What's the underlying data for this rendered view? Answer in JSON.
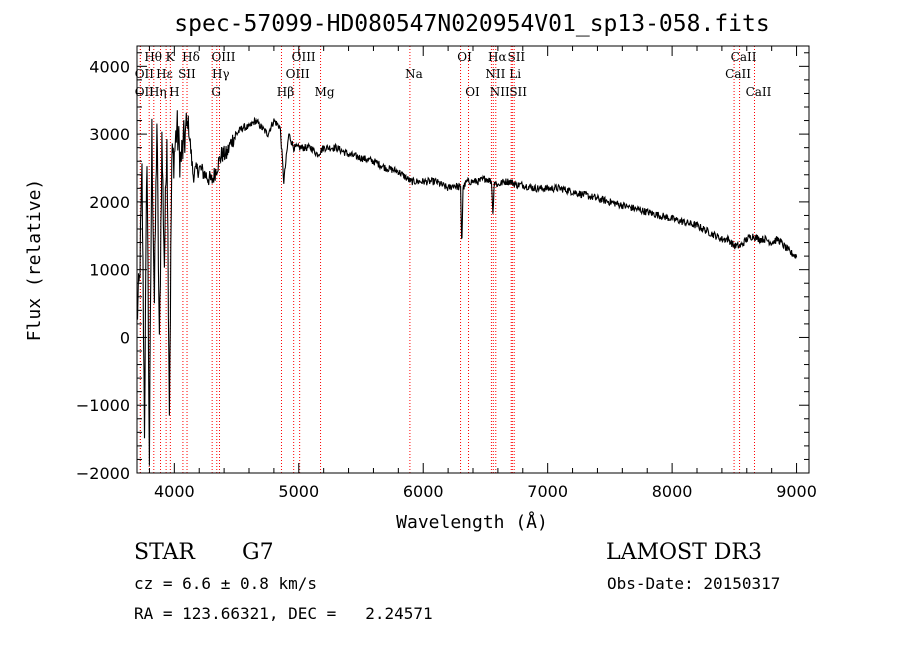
{
  "chart_data": {
    "type": "line",
    "title": "spec-57099-HD080547N020954V01_sp13-058.fits",
    "xlabel": "Wavelength (Å)",
    "ylabel": "Flux (relative)",
    "xlim": [
      3700,
      9100
    ],
    "ylim": [
      -2000,
      4300
    ],
    "xticks": [
      4000,
      5000,
      6000,
      7000,
      8000,
      9000
    ],
    "yticks": [
      -2000,
      -1000,
      0,
      1000,
      2000,
      3000,
      4000
    ],
    "tick_labels_x": [
      "4000",
      "5000",
      "6000",
      "7000",
      "8000",
      "9000"
    ],
    "tick_labels_y": [
      "−2000",
      "−1000",
      "0",
      "1000",
      "2000",
      "3000",
      "4000"
    ],
    "line_color": "#ff0000",
    "lines": [
      {
        "label": "OII",
        "wave": 3727,
        "row": 1
      },
      {
        "label": "OII",
        "wave": 3727,
        "row": 2
      },
      {
        "label": "Hθ",
        "wave": 3798,
        "row": 0
      },
      {
        "label": "Hη",
        "wave": 3835,
        "row": 2
      },
      {
        "label": "Hε",
        "wave": 3889,
        "row": 1
      },
      {
        "label": "K",
        "wave": 3934,
        "row": 0
      },
      {
        "label": "H",
        "wave": 3968,
        "row": 2
      },
      {
        "label": "SII",
        "wave": 4069,
        "row": 1
      },
      {
        "label": "Hδ",
        "wave": 4102,
        "row": 0
      },
      {
        "label": "G",
        "wave": 4304,
        "row": 2
      },
      {
        "label": "Hγ",
        "wave": 4341,
        "row": 1
      },
      {
        "label": "OIII",
        "wave": 4363,
        "row": 0
      },
      {
        "label": "Hβ",
        "wave": 4861,
        "row": 2
      },
      {
        "label": "OIII",
        "wave": 4959,
        "row": 1
      },
      {
        "label": "OIII",
        "wave": 5007,
        "row": 0
      },
      {
        "label": "Mg",
        "wave": 5175,
        "row": 2
      },
      {
        "label": "Na",
        "wave": 5893,
        "row": 1
      },
      {
        "label": "OI",
        "wave": 6300,
        "row": 0
      },
      {
        "label": "OI",
        "wave": 6364,
        "row": 2
      },
      {
        "label": "NII",
        "wave": 6548,
        "row": 1
      },
      {
        "label": "NII",
        "wave": 6583,
        "row": 2
      },
      {
        "label": "Hα",
        "wave": 6563,
        "row": 0
      },
      {
        "label": "Li",
        "wave": 6707,
        "row": 1
      },
      {
        "label": "SII",
        "wave": 6716,
        "row": 0
      },
      {
        "label": "SII",
        "wave": 6731,
        "row": 2
      },
      {
        "label": "CaII",
        "wave": 8498,
        "row": 1
      },
      {
        "label": "CaII",
        "wave": 8542,
        "row": 0
      },
      {
        "label": "CaII",
        "wave": 8662,
        "row": 2
      }
    ],
    "series": [
      {
        "name": "flux",
        "x": [
          3700,
          3720,
          3740,
          3760,
          3780,
          3800,
          3820,
          3840,
          3860,
          3880,
          3900,
          3920,
          3940,
          3960,
          3980,
          4000,
          4020,
          4050,
          4080,
          4110,
          4150,
          4200,
          4250,
          4300,
          4340,
          4380,
          4420,
          4460,
          4500,
          4550,
          4600,
          4650,
          4700,
          4750,
          4800,
          4850,
          4880,
          4920,
          4960,
          5000,
          5050,
          5100,
          5150,
          5200,
          5300,
          5400,
          5500,
          5600,
          5700,
          5800,
          5900,
          6000,
          6100,
          6200,
          6250,
          6300,
          6310,
          6320,
          6350,
          6400,
          6450,
          6500,
          6550,
          6560,
          6570,
          6600,
          6650,
          6700,
          6750,
          6800,
          6900,
          7000,
          7100,
          7200,
          7300,
          7400,
          7500,
          7600,
          7700,
          7800,
          7900,
          8000,
          8100,
          8200,
          8300,
          8400,
          8450,
          8500,
          8550,
          8600,
          8650,
          8700,
          8750,
          8800,
          8850,
          8900,
          8950,
          9000
        ],
        "y": [
          300,
          800,
          2400,
          -1300,
          2800,
          -1800,
          3000,
          500,
          3200,
          -200,
          2900,
          1100,
          3100,
          -1000,
          2600,
          2700,
          3100,
          2600,
          2900,
          3200,
          2400,
          2500,
          2400,
          2300,
          2500,
          2700,
          2700,
          2900,
          3000,
          3100,
          3100,
          3200,
          3100,
          3000,
          3200,
          3100,
          2300,
          3000,
          2800,
          2800,
          2800,
          2800,
          2700,
          2800,
          2800,
          2700,
          2650,
          2600,
          2500,
          2450,
          2300,
          2300,
          2300,
          2200,
          2250,
          2200,
          1300,
          2200,
          2300,
          2300,
          2300,
          2350,
          2300,
          1800,
          2300,
          2250,
          2300,
          2300,
          2250,
          2250,
          2200,
          2200,
          2200,
          2150,
          2100,
          2050,
          2000,
          1950,
          1900,
          1850,
          1800,
          1750,
          1700,
          1650,
          1550,
          1450,
          1450,
          1350,
          1350,
          1450,
          1500,
          1450,
          1450,
          1400,
          1450,
          1350,
          1250,
          1200
        ]
      }
    ]
  },
  "info": {
    "class_label": "STAR",
    "subclass": "G7",
    "survey": "LAMOST DR3",
    "cz_text": "cz = 6.6 ± 0.8 km/s",
    "obs_date": "Obs-Date: 20150317",
    "radec": "RA = 123.66321, DEC =   2.24571"
  }
}
